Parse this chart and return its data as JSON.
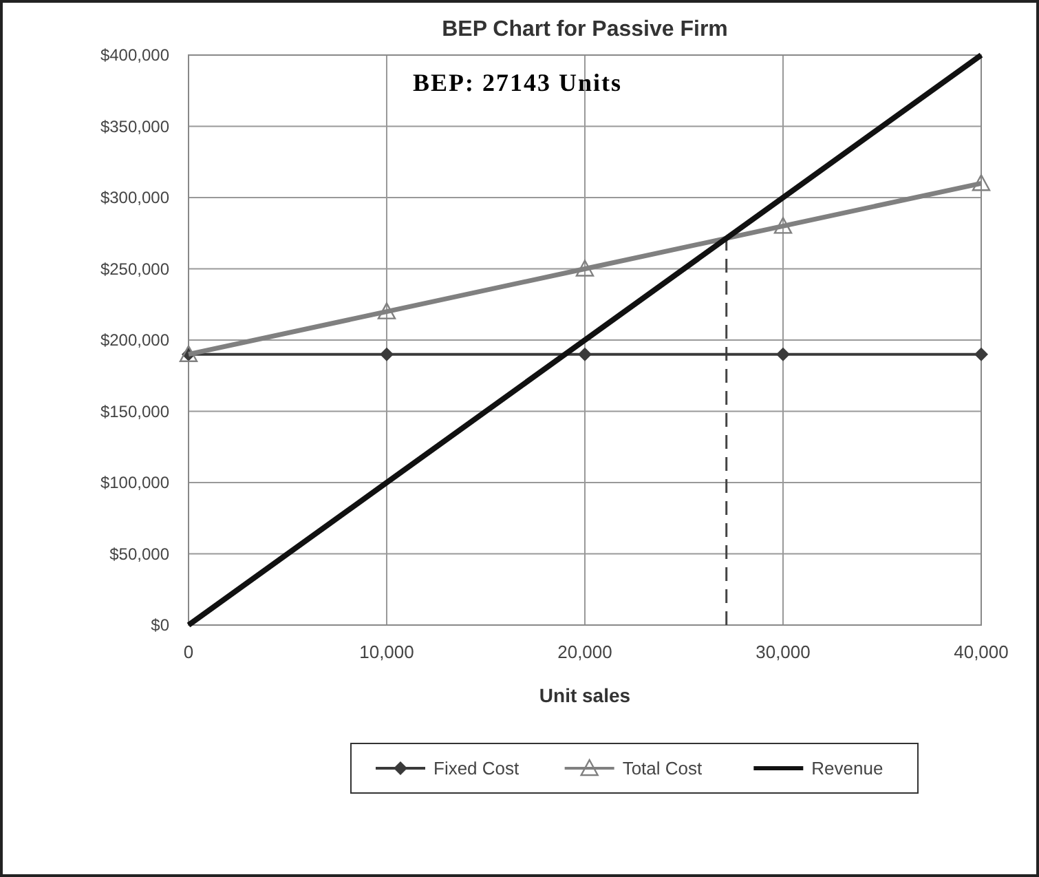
{
  "chart_data": {
    "type": "line",
    "title": "BEP Chart for Passive Firm",
    "xlabel": "Unit sales",
    "annotations": [
      "BEP: 27143 Units"
    ],
    "x": [
      0,
      10000,
      20000,
      30000,
      40000
    ],
    "series": [
      {
        "name": "Fixed Cost",
        "color": "#3a3a3a",
        "values": [
          190000,
          190000,
          190000,
          190000,
          190000
        ],
        "marker": "diamond"
      },
      {
        "name": "Total Cost",
        "color": "#808080",
        "values": [
          190000,
          220000,
          250000,
          280000,
          310000
        ],
        "marker": "triangle"
      },
      {
        "name": "Revenue",
        "color": "#111111",
        "values": [
          0,
          100000,
          200000,
          300000,
          400000
        ],
        "marker": "none"
      }
    ],
    "xlim": [
      0,
      40000
    ],
    "ylim": [
      0,
      400000
    ],
    "xticks": [
      {
        "value": 0,
        "label": "0"
      },
      {
        "value": 10000,
        "label": "10,000"
      },
      {
        "value": 20000,
        "label": "20,000"
      },
      {
        "value": 30000,
        "label": "30,000"
      },
      {
        "value": 40000,
        "label": "40,000"
      }
    ],
    "yticks": [
      {
        "value": 0,
        "label": "$0"
      },
      {
        "value": 50000,
        "label": "$50,000"
      },
      {
        "value": 100000,
        "label": "$100,000"
      },
      {
        "value": 150000,
        "label": "$150,000"
      },
      {
        "value": 200000,
        "label": "$200,000"
      },
      {
        "value": 250000,
        "label": "$250,000"
      },
      {
        "value": 300000,
        "label": "$300,000"
      },
      {
        "value": 350000,
        "label": "$350,000"
      },
      {
        "value": 400000,
        "label": "$400,000"
      }
    ],
    "ref_lines": [
      {
        "axis": "x",
        "value": 27143,
        "line_style": "dashed",
        "color": "#444444"
      }
    ],
    "grid": true,
    "legend": "bottom"
  }
}
